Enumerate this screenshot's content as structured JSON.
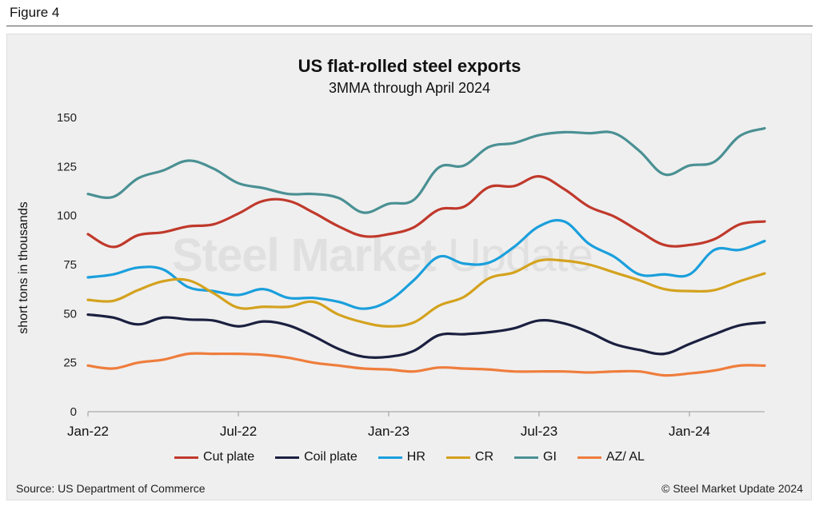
{
  "figure_label": "Figure 4",
  "source": "Source: US Department of Commerce",
  "copyright": "© Steel Market Update 2024",
  "watermark": {
    "bold": "Steel Market",
    "light": " Update"
  },
  "chart_data": {
    "type": "line",
    "title": "US flat-rolled steel exports",
    "subtitle": "3MMA through April 2024",
    "ylabel": "short tons in thousands",
    "xlabel": "",
    "ylim": [
      0,
      150
    ],
    "yticks": [
      0,
      25,
      50,
      75,
      100,
      125,
      150
    ],
    "xtick_labels": [
      {
        "index": 0,
        "label": "Jan-22"
      },
      {
        "index": 6,
        "label": "Jul-22"
      },
      {
        "index": 12,
        "label": "Jan-23"
      },
      {
        "index": 18,
        "label": "Jul-23"
      },
      {
        "index": 24,
        "label": "Jan-24"
      }
    ],
    "x": [
      "Jan-22",
      "Feb-22",
      "Mar-22",
      "Apr-22",
      "May-22",
      "Jun-22",
      "Jul-22",
      "Aug-22",
      "Sep-22",
      "Oct-22",
      "Nov-22",
      "Dec-22",
      "Jan-23",
      "Feb-23",
      "Mar-23",
      "Apr-23",
      "May-23",
      "Jun-23",
      "Jul-23",
      "Aug-23",
      "Sep-23",
      "Oct-23",
      "Nov-23",
      "Dec-23",
      "Jan-24",
      "Feb-24",
      "Mar-24",
      "Apr-24"
    ],
    "grid": false,
    "legend_position": "bottom",
    "series": [
      {
        "name": "Cut plate",
        "color": "#c0392b",
        "values": [
          90.5,
          84,
          90,
          91.5,
          94.5,
          95.5,
          101,
          107.5,
          107.5,
          101.5,
          94.5,
          89.5,
          90.5,
          94,
          103,
          104.5,
          114.5,
          115,
          120,
          113.5,
          104.5,
          99.5,
          92,
          85,
          85,
          88,
          95.5,
          97
        ]
      },
      {
        "name": "Coil plate",
        "color": "#1b2040",
        "values": [
          49.5,
          48,
          44.5,
          48,
          47,
          46.5,
          43.5,
          46,
          44,
          38.5,
          32,
          28,
          28,
          31,
          39,
          39.5,
          40.5,
          42.5,
          46.5,
          45,
          40.5,
          34.5,
          31.5,
          29.5,
          34.5,
          39.5,
          44,
          45.5
        ]
      },
      {
        "name": "HR",
        "color": "#1a9fdc",
        "values": [
          68.5,
          70,
          73.5,
          72.5,
          63.5,
          61.5,
          59.5,
          62.5,
          58,
          58,
          56,
          52.5,
          56.5,
          67,
          79,
          75.5,
          76,
          84,
          94.5,
          97,
          85.5,
          79,
          70,
          70,
          70,
          82.5,
          82.5,
          87
        ]
      },
      {
        "name": "CR",
        "color": "#d4a21e",
        "values": [
          57,
          56.5,
          62,
          66.5,
          67,
          60.5,
          53,
          53.5,
          53.5,
          56,
          49.5,
          45.5,
          43.5,
          45.5,
          54,
          58.5,
          68,
          71,
          77,
          77,
          75,
          71,
          67,
          62.5,
          61.5,
          62,
          66.5,
          70.5
        ]
      },
      {
        "name": "GI",
        "color": "#4a9093",
        "values": [
          111,
          109.5,
          119,
          123,
          128,
          124,
          116.5,
          114,
          111,
          111,
          109,
          101.5,
          106,
          108,
          124.5,
          125.5,
          135,
          137,
          141,
          142.5,
          142,
          142,
          133,
          121,
          125.5,
          127.5,
          140.5,
          144.5
        ]
      },
      {
        "name": "AZ/ AL",
        "color": "#ef7d3c",
        "values": [
          23.5,
          22,
          25,
          26.5,
          29.5,
          29.5,
          29.5,
          29,
          27.5,
          25,
          23.5,
          22,
          21.5,
          20.5,
          22.5,
          22,
          21.5,
          20.5,
          20.5,
          20.5,
          20,
          20.5,
          20.5,
          18.5,
          19.5,
          21,
          23.5,
          23.5
        ]
      }
    ]
  }
}
